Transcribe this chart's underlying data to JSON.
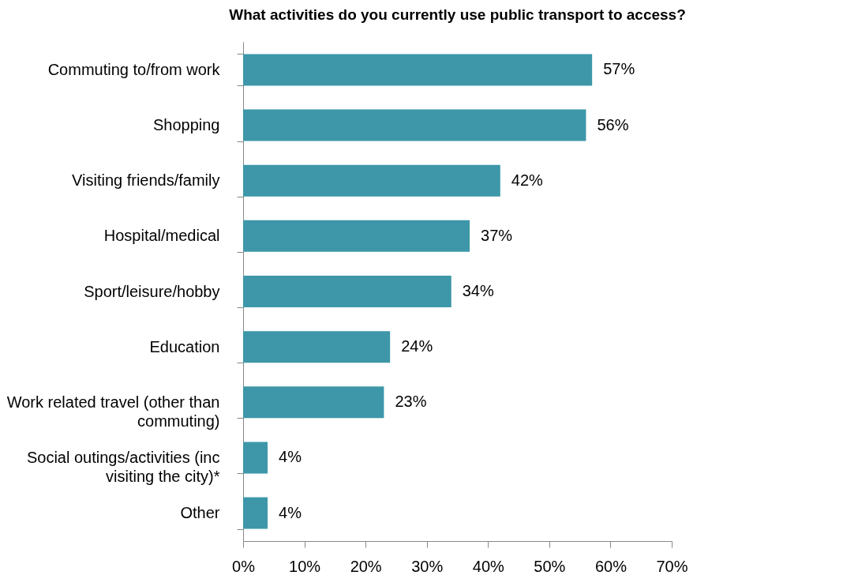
{
  "chart_data": {
    "type": "bar",
    "orientation": "horizontal",
    "title": "What activities do you currently use public transport to access?",
    "categories": [
      "Commuting to/from work",
      "Shopping",
      "Visiting friends/family",
      "Hospital/medical",
      "Sport/leisure/hobby",
      "Education",
      "Work related travel (other than commuting)",
      "Social outings/activities (inc visiting the city)*",
      "Other"
    ],
    "values": [
      57,
      56,
      42,
      37,
      34,
      24,
      23,
      4,
      4
    ],
    "value_labels": [
      "57%",
      "56%",
      "42%",
      "37%",
      "34%",
      "24%",
      "23%",
      "4%",
      "4%"
    ],
    "color": "#3d97a9",
    "xlim": [
      0,
      70
    ],
    "xticks": [
      {
        "value": 0,
        "label": "0%"
      },
      {
        "value": 10,
        "label": "10%"
      },
      {
        "value": 20,
        "label": "20%"
      },
      {
        "value": 30,
        "label": "30%"
      },
      {
        "value": 40,
        "label": "40%"
      },
      {
        "value": 50,
        "label": "50%"
      },
      {
        "value": 60,
        "label": "60%"
      },
      {
        "value": 70,
        "label": "70%"
      }
    ]
  }
}
